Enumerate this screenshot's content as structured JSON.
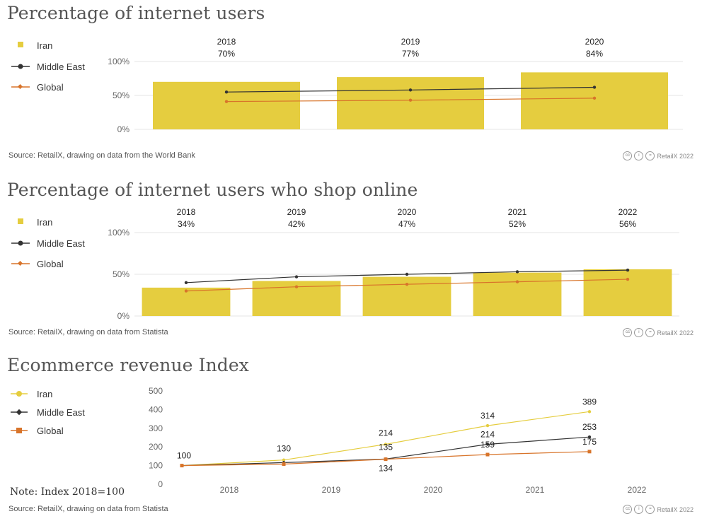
{
  "colors": {
    "iran": "#e5cd3f",
    "middle_east": "#333333",
    "global": "#d8742a",
    "grid": "#e6e6e6",
    "axis_text": "#666666"
  },
  "legend": {
    "iran": "Iran",
    "middle_east": "Middle East",
    "global": "Global"
  },
  "credit": {
    "label": "RetailX 2022",
    "icons": [
      "cc-icon",
      "by-icon",
      "nd-icon"
    ]
  },
  "panel1": {
    "title": "Percentage of internet users",
    "source": "Source: RetailX, drawing on data from the World Bank",
    "chart_data": {
      "type": "bar",
      "categories": [
        "2018",
        "2019",
        "2020"
      ],
      "series": [
        {
          "name": "Iran",
          "values": [
            70,
            77,
            84
          ],
          "labels": [
            "70%",
            "77%",
            "84%"
          ]
        },
        {
          "name": "Middle East",
          "values": [
            55,
            58,
            62
          ]
        },
        {
          "name": "Global",
          "values": [
            41,
            43,
            46
          ]
        }
      ],
      "ylim": [
        0,
        100
      ],
      "yticks": [
        "0%",
        "50%",
        "100%"
      ],
      "ytick_values": [
        0,
        50,
        100
      ]
    }
  },
  "panel2": {
    "title": "Percentage of internet users who shop online",
    "source": "Source: RetailX, drawing on data from Statista",
    "chart_data": {
      "type": "bar",
      "categories": [
        "2018",
        "2019",
        "2020",
        "2021",
        "2022"
      ],
      "series": [
        {
          "name": "Iran",
          "values": [
            34,
            42,
            47,
            52,
            56
          ],
          "labels": [
            "34%",
            "42%",
            "47%",
            "52%",
            "56%"
          ]
        },
        {
          "name": "Middle East",
          "values": [
            40,
            47,
            50,
            53,
            55
          ]
        },
        {
          "name": "Global",
          "values": [
            30,
            35,
            38,
            41,
            44
          ]
        }
      ],
      "ylim": [
        0,
        100
      ],
      "yticks": [
        "0%",
        "50%",
        "100%"
      ],
      "ytick_values": [
        0,
        50,
        100
      ]
    }
  },
  "panel3": {
    "title": "Ecommerce revenue Index",
    "note": "Note: Index 2018=100",
    "source": "Source: RetailX, drawing on data from Statista",
    "chart_data": {
      "type": "line",
      "categories": [
        "2018",
        "2019",
        "2020",
        "2021",
        "2022"
      ],
      "series": [
        {
          "name": "Iran",
          "values": [
            100,
            130,
            214,
            314,
            389
          ]
        },
        {
          "name": "Middle East",
          "values": [
            100,
            116,
            135,
            214,
            253
          ]
        },
        {
          "name": "Global",
          "values": [
            100,
            108,
            134,
            159,
            175
          ]
        }
      ],
      "labels": [
        "100",
        "130",
        "214",
        "135",
        "134",
        "314",
        "214",
        "159",
        "389",
        "253",
        "175"
      ],
      "ylim": [
        0,
        500
      ],
      "yticks": [
        "0",
        "100",
        "200",
        "300",
        "400",
        "500"
      ],
      "ytick_values": [
        0,
        100,
        200,
        300,
        400,
        500
      ]
    }
  }
}
